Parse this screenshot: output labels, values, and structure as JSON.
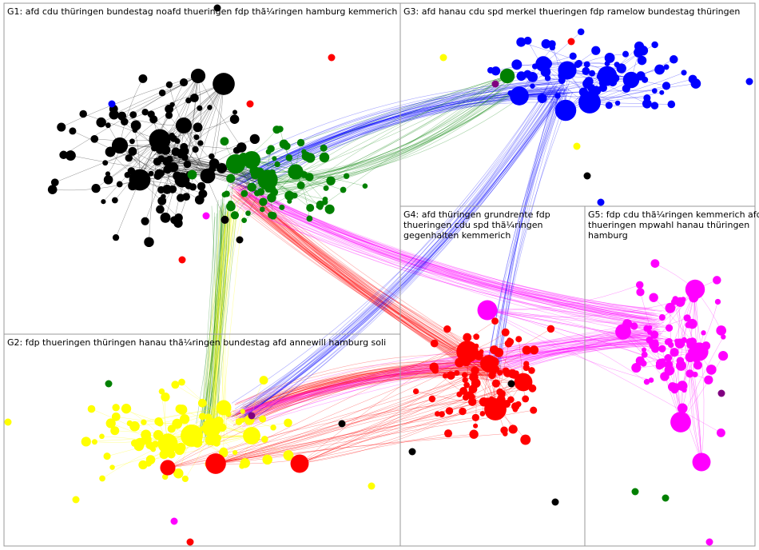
{
  "groups": [
    {
      "id": "G1",
      "label": "G1: afd cdu thüringen bundestag noafd thueringen fdp thã¼ringen hamburg kemmerich",
      "color": "#000000"
    },
    {
      "id": "G2",
      "label": "G2: fdp thueringen thüringen hanau thã¼ringen bundestag afd annewill hamburg soli",
      "color": "#ffff00"
    },
    {
      "id": "G3",
      "label": "G3: afd hanau cdu spd merkel thueringen fdp ramelow bundestag thüringen",
      "color": "#0000ff"
    },
    {
      "id": "G4",
      "label": "G4: afd thüringen grundrente fdp thueringen cdu spd thã¼ringen gegenhalten kemmerich",
      "color": "#ff0000"
    },
    {
      "id": "G5",
      "label": "G5: fdp cdu thã¼ringen kemmerich afd thueringen mpwahl hanau thüringen hamburg",
      "color": "#ff00ff"
    }
  ],
  "colors": {
    "black": "#000000",
    "green": "#008000",
    "blue": "#0000ff",
    "yellow": "#ffff00",
    "red": "#ff0000",
    "magenta": "#ff00ff",
    "purple": "#800080",
    "border": "#999999"
  }
}
